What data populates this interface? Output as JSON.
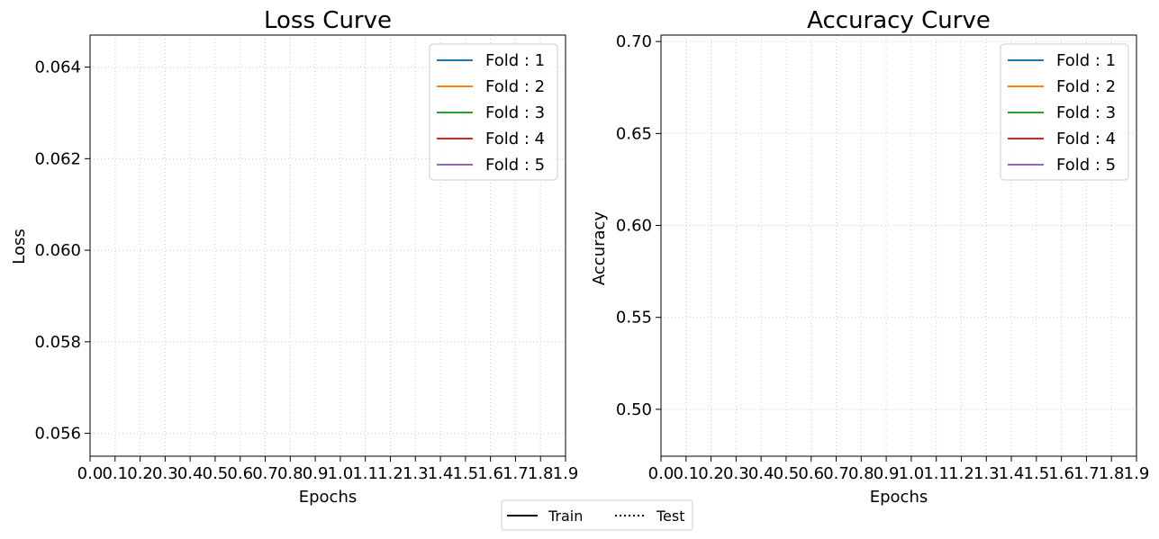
{
  "chart_data": [
    {
      "type": "line",
      "title": "Loss Curve",
      "xlabel": "Epochs",
      "ylabel": "Loss",
      "xlim": [
        0.0,
        1.9
      ],
      "ylim": [
        0.0555,
        0.0647
      ],
      "x_ticks": [
        "0.0",
        "0.1",
        "0.2",
        "0.3",
        "0.4",
        "0.5",
        "0.6",
        "0.7",
        "0.8",
        "0.9",
        "1.0",
        "1.1",
        "1.2",
        "1.3",
        "1.4",
        "1.5",
        "1.6",
        "1.7",
        "1.8",
        "1.9"
      ],
      "y_ticks": [
        "0.056",
        "0.058",
        "0.060",
        "0.062",
        "0.064"
      ],
      "grid": true,
      "legend_position": "top-right",
      "series": [
        {
          "name": "Fold : 1",
          "color": "#1f77b4",
          "values": []
        },
        {
          "name": "Fold : 2",
          "color": "#ff7f0e",
          "values": []
        },
        {
          "name": "Fold : 3",
          "color": "#2ca02c",
          "values": []
        },
        {
          "name": "Fold : 4",
          "color": "#d62728",
          "values": []
        },
        {
          "name": "Fold : 5",
          "color": "#9467bd",
          "values": []
        }
      ]
    },
    {
      "type": "line",
      "title": "Accuracy Curve",
      "xlabel": "Epochs",
      "ylabel": "Accuracy",
      "xlim": [
        0.0,
        1.9
      ],
      "ylim": [
        0.4745,
        0.7035
      ],
      "x_ticks": [
        "0.0",
        "0.1",
        "0.2",
        "0.3",
        "0.4",
        "0.5",
        "0.6",
        "0.7",
        "0.8",
        "0.9",
        "1.0",
        "1.1",
        "1.2",
        "1.3",
        "1.4",
        "1.5",
        "1.6",
        "1.7",
        "1.8",
        "1.9"
      ],
      "y_ticks": [
        "0.50",
        "0.55",
        "0.60",
        "0.65",
        "0.70"
      ],
      "grid": true,
      "legend_position": "top-right",
      "series": [
        {
          "name": "Fold : 1",
          "color": "#1f77b4",
          "values": []
        },
        {
          "name": "Fold : 2",
          "color": "#ff7f0e",
          "values": []
        },
        {
          "name": "Fold : 3",
          "color": "#2ca02c",
          "values": []
        },
        {
          "name": "Fold : 4",
          "color": "#d62728",
          "values": []
        },
        {
          "name": "Fold : 5",
          "color": "#9467bd",
          "values": []
        }
      ]
    }
  ],
  "shared_legend": {
    "position": "bottom-center",
    "entries": [
      {
        "label": "Train",
        "style": "solid"
      },
      {
        "label": "Test",
        "style": "dotted"
      }
    ]
  }
}
